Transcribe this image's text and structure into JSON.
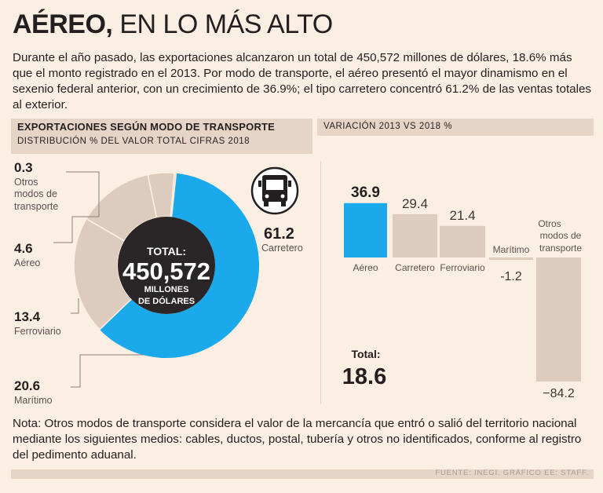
{
  "header": {
    "title_bold": "AÉREO,",
    "title_rest": "EN LO MÁS ALTO",
    "intro": "Durante el año pasado, las exportaciones alcanzaron un total de 450,572 millones de dólares, 18.6% más que el monto registrado en el 2013. Por modo de transporte, el aéreo presentó el mayor dinamismo en el sexenio federal anterior, con un crecimiento de 36.9%; el tipo carretero concentró 61.2% de las ventas totales al exterior."
  },
  "donut_panel": {
    "title": "EXPORTACIONES SEGÚN MODO  DE TRANSPORTE",
    "subtitle": "DISTRIBUCIÓN %   DEL VALOR TOTAL   CIFRAS 2018"
  },
  "bar_panel": {
    "title": "VARIACIÓN 2013 VS 2018 %"
  },
  "colors": {
    "highlight": "#1aa9ea",
    "neutral": "#ddcbbd",
    "center": "#2a2627",
    "background": "#fbeee2"
  },
  "icons": [
    "truck-icon"
  ],
  "chart_data": [
    {
      "type": "pie",
      "title": "EXPORTACIONES SEGÚN MODO DE TRANSPORTE",
      "subtitle": "DISTRIBUCIÓN % DEL VALOR TOTAL CIFRAS 2018",
      "center_label": {
        "line1": "TOTAL:",
        "value": "450,572",
        "line2": "MILLONES",
        "line3": "DE DÓLARES"
      },
      "slices": [
        {
          "name": "Carretero",
          "value": 61.2,
          "label": "61.2",
          "highlight": true
        },
        {
          "name": "Marítimo",
          "value": 20.6,
          "label": "20.6",
          "highlight": false
        },
        {
          "name": "Ferroviario",
          "value": 13.4,
          "label": "13.4",
          "highlight": false
        },
        {
          "name": "Aéreo",
          "value": 4.6,
          "label": "4.6",
          "highlight": false
        },
        {
          "name": "Otros modos de transporte",
          "value": 0.3,
          "label": "0.3",
          "highlight": false
        }
      ],
      "legend": {
        "otros": {
          "value": "0.3",
          "l1": "Otros",
          "l2": "modos de",
          "l3": "transporte"
        },
        "aereo": {
          "value": "4.6",
          "name": "Aéreo"
        },
        "ferroviario": {
          "value": "13.4",
          "name": "Ferroviario"
        },
        "maritimo": {
          "value": "20.6",
          "name": "Marítimo"
        },
        "carretero": {
          "value": "61.2",
          "name": "Carretero"
        }
      }
    },
    {
      "type": "bar",
      "title": "VARIACIÓN 2013 VS 2018 %",
      "categories": [
        "Aéreo",
        "Carretero",
        "Ferroviario",
        "Marítimo",
        "Otros modos de transporte"
      ],
      "values": [
        36.9,
        29.4,
        21.4,
        -1.2,
        -84.2
      ],
      "value_labels": [
        "36.9",
        "29.4",
        "21.4",
        "-1.2",
        "−84.2"
      ],
      "otros_label": {
        "l1": "Otros",
        "l2": "modos de",
        "l3": "transporte"
      },
      "highlight_index": 0,
      "total_label": "Total:",
      "total_value": "18.6",
      "ylim": [
        -84.2,
        36.9
      ]
    }
  ],
  "footer": {
    "note": "Nota: Otros modos de transporte considera el valor de la mercancía que entró o salió del territorio nacional mediante los siguientes medios: cables, ductos, postal, tubería y otros no identificados, conforme al registro del pedimento aduanal.",
    "source": "FUENTE: INEGI. GRÁFICO EE: STAFF."
  }
}
